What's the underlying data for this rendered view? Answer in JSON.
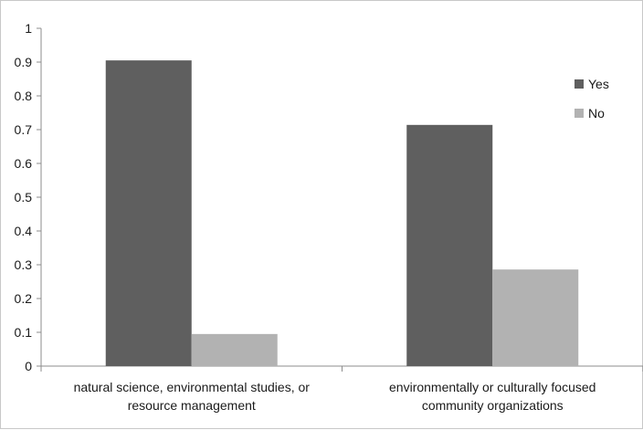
{
  "chart_data": {
    "type": "bar",
    "categories": [
      [
        "natural science, environmental studies, or",
        "resource management"
      ],
      [
        "environmentally or culturally focused",
        "community organizations"
      ]
    ],
    "series": [
      {
        "name": "Yes",
        "values": [
          0.905,
          0.714
        ],
        "color": "#5f5f5f"
      },
      {
        "name": "No",
        "values": [
          0.095,
          0.286
        ],
        "color": "#b2b2b2"
      }
    ],
    "ylim": [
      0,
      1
    ],
    "yticks": [
      "0",
      "0.1",
      "0.2",
      "0.3",
      "0.4",
      "0.5",
      "0.6",
      "0.7",
      "0.8",
      "0.9",
      "1"
    ],
    "grid": false,
    "legend_position": "right"
  }
}
